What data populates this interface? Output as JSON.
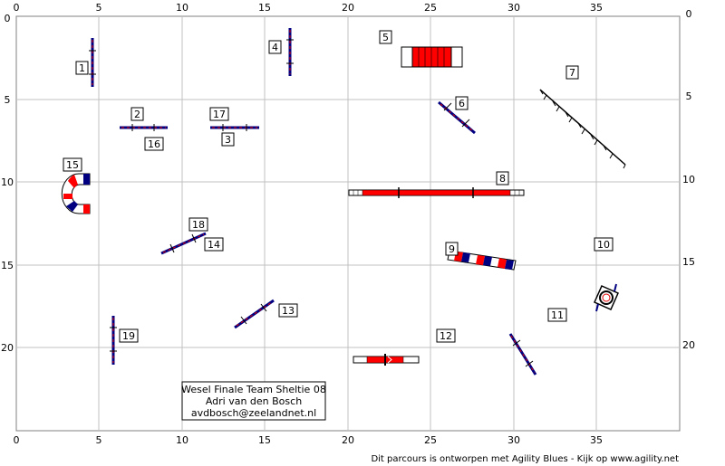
{
  "course": {
    "x_ticks": [
      "0",
      "5",
      "10",
      "15",
      "20",
      "25",
      "30",
      "35"
    ],
    "y_ticks": [
      "0",
      "5",
      "10",
      "15",
      "20"
    ],
    "info_box": {
      "line1": "Wesel Finale Team Sheltie 08",
      "line2": "Adri van den Bosch",
      "line3": "avdbosch@zeelandnet.nl"
    },
    "footer": "Dit parcours is ontworpen met Agility Blues - Kijk op www.agility.net",
    "obstacle_numbers": [
      "1",
      "2",
      "3",
      "4",
      "5",
      "6",
      "7",
      "8",
      "9",
      "10",
      "11",
      "12",
      "13",
      "14",
      "15",
      "16",
      "17",
      "18",
      "19"
    ]
  },
  "colors": {
    "grid": "#c0c0c0",
    "bar_blue": "#000080",
    "tunnel_red": "#ff0000",
    "plank_red": "#e00000"
  },
  "icons": [
    "jump-icon",
    "tunnel-icon",
    "seesaw-icon",
    "dogwalk-icon",
    "weave-poles-icon",
    "tire-icon",
    "table-icon",
    "chute-icon"
  ]
}
